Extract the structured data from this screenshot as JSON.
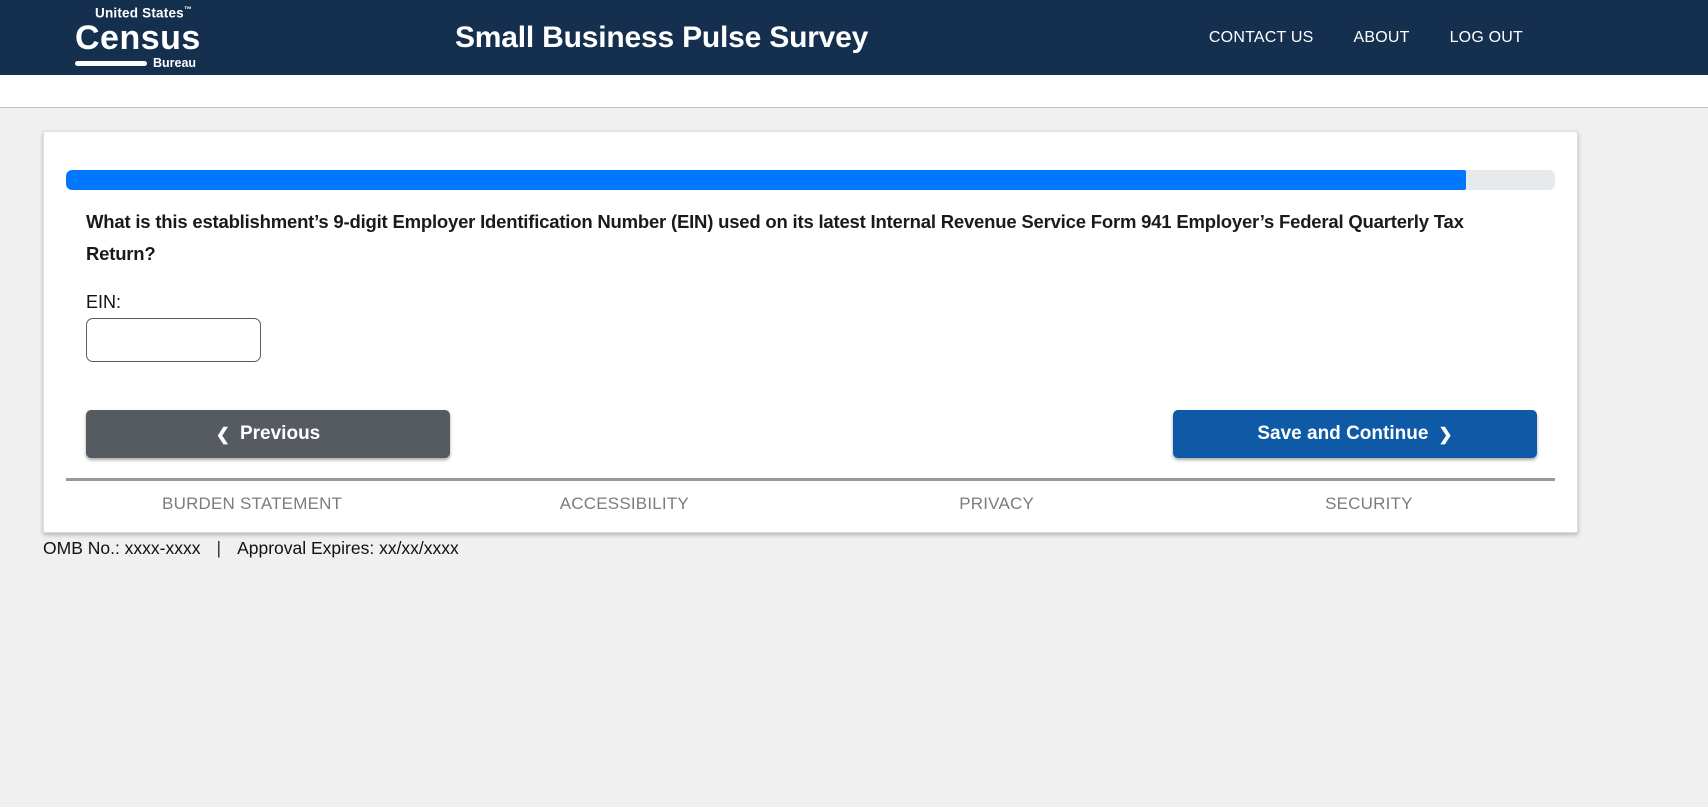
{
  "header": {
    "logo": {
      "top": "United States",
      "tm": "™",
      "main": "Census",
      "sub": "Bureau"
    },
    "title": "Small Business Pulse Survey",
    "nav": [
      {
        "label": "CONTACT US"
      },
      {
        "label": "ABOUT"
      },
      {
        "label": "LOG OUT"
      }
    ]
  },
  "survey": {
    "progress": {
      "percent": 94
    },
    "question": "What is this establishment’s 9-digit Employer Identification Number (EIN) used on its latest Internal Revenue Service Form 941 Employer’s Federal Quarterly Tax Return?",
    "ein_label": "EIN:",
    "ein_value": "",
    "buttons": {
      "previous": {
        "label": "Previous",
        "icon": "❮"
      },
      "save": {
        "label": "Save and Continue",
        "icon": "❯"
      }
    }
  },
  "footer": {
    "links": [
      {
        "label": "BURDEN STATEMENT"
      },
      {
        "label": "ACCESSIBILITY"
      },
      {
        "label": "PRIVACY"
      },
      {
        "label": "SECURITY"
      }
    ],
    "omb": "OMB No.: xxxx-xxxx",
    "separator": "|",
    "approval": "Approval Expires: xx/xx/xxxx"
  },
  "colors": {
    "header_navy": "#152f4e",
    "progress_blue": "#0077fe",
    "save_blue": "#0e5aa7",
    "previous_gray": "#555b61",
    "page_background": "#f0f0f0"
  }
}
